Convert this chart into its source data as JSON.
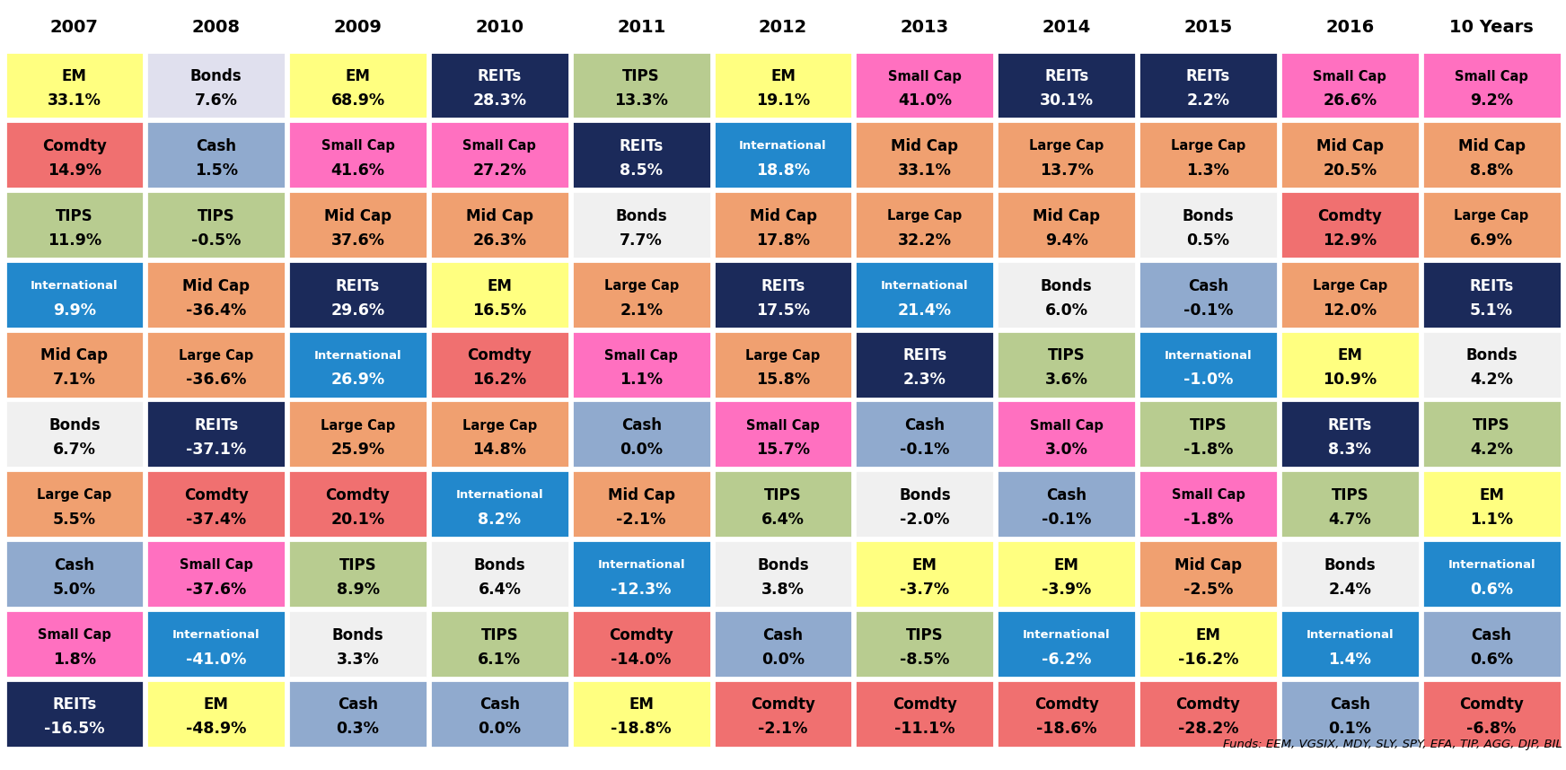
{
  "columns": [
    "2007",
    "2008",
    "2009",
    "2010",
    "2011",
    "2012",
    "2013",
    "2014",
    "2015",
    "2016",
    "10 Years"
  ],
  "rows": [
    [
      {
        "label": "EM",
        "value": "33.1%",
        "bg": "#FFFF80",
        "fg": "#000000"
      },
      {
        "label": "Bonds",
        "value": "7.6%",
        "bg": "#E0E0EE",
        "fg": "#000000"
      },
      {
        "label": "EM",
        "value": "68.9%",
        "bg": "#FFFF80",
        "fg": "#000000"
      },
      {
        "label": "REITs",
        "value": "28.3%",
        "bg": "#1B2A5A",
        "fg": "#FFFFFF"
      },
      {
        "label": "TIPS",
        "value": "13.3%",
        "bg": "#B8CC90",
        "fg": "#000000"
      },
      {
        "label": "EM",
        "value": "19.1%",
        "bg": "#FFFF80",
        "fg": "#000000"
      },
      {
        "label": "Small Cap",
        "value": "41.0%",
        "bg": "#FF70C0",
        "fg": "#000000"
      },
      {
        "label": "REITs",
        "value": "30.1%",
        "bg": "#1B2A5A",
        "fg": "#FFFFFF"
      },
      {
        "label": "REITs",
        "value": "2.2%",
        "bg": "#1B2A5A",
        "fg": "#FFFFFF"
      },
      {
        "label": "Small Cap",
        "value": "26.6%",
        "bg": "#FF70C0",
        "fg": "#000000"
      },
      {
        "label": "Small Cap",
        "value": "9.2%",
        "bg": "#FF70C0",
        "fg": "#000000"
      }
    ],
    [
      {
        "label": "Comdty",
        "value": "14.9%",
        "bg": "#F07070",
        "fg": "#000000"
      },
      {
        "label": "Cash",
        "value": "1.5%",
        "bg": "#90AACE",
        "fg": "#000000"
      },
      {
        "label": "Small Cap",
        "value": "41.6%",
        "bg": "#FF70C0",
        "fg": "#000000"
      },
      {
        "label": "Small Cap",
        "value": "27.2%",
        "bg": "#FF70C0",
        "fg": "#000000"
      },
      {
        "label": "REITs",
        "value": "8.5%",
        "bg": "#1B2A5A",
        "fg": "#FFFFFF"
      },
      {
        "label": "International",
        "value": "18.8%",
        "bg": "#2288CC",
        "fg": "#FFFFFF"
      },
      {
        "label": "Mid Cap",
        "value": "33.1%",
        "bg": "#F0A070",
        "fg": "#000000"
      },
      {
        "label": "Large Cap",
        "value": "13.7%",
        "bg": "#F0A070",
        "fg": "#000000"
      },
      {
        "label": "Large Cap",
        "value": "1.3%",
        "bg": "#F0A070",
        "fg": "#000000"
      },
      {
        "label": "Mid Cap",
        "value": "20.5%",
        "bg": "#F0A070",
        "fg": "#000000"
      },
      {
        "label": "Mid Cap",
        "value": "8.8%",
        "bg": "#F0A070",
        "fg": "#000000"
      }
    ],
    [
      {
        "label": "TIPS",
        "value": "11.9%",
        "bg": "#B8CC90",
        "fg": "#000000"
      },
      {
        "label": "TIPS",
        "value": "-0.5%",
        "bg": "#B8CC90",
        "fg": "#000000"
      },
      {
        "label": "Mid Cap",
        "value": "37.6%",
        "bg": "#F0A070",
        "fg": "#000000"
      },
      {
        "label": "Mid Cap",
        "value": "26.3%",
        "bg": "#F0A070",
        "fg": "#000000"
      },
      {
        "label": "Bonds",
        "value": "7.7%",
        "bg": "#F0F0F0",
        "fg": "#000000"
      },
      {
        "label": "Mid Cap",
        "value": "17.8%",
        "bg": "#F0A070",
        "fg": "#000000"
      },
      {
        "label": "Large Cap",
        "value": "32.2%",
        "bg": "#F0A070",
        "fg": "#000000"
      },
      {
        "label": "Mid Cap",
        "value": "9.4%",
        "bg": "#F0A070",
        "fg": "#000000"
      },
      {
        "label": "Bonds",
        "value": "0.5%",
        "bg": "#F0F0F0",
        "fg": "#000000"
      },
      {
        "label": "Comdty",
        "value": "12.9%",
        "bg": "#F07070",
        "fg": "#000000"
      },
      {
        "label": "Large Cap",
        "value": "6.9%",
        "bg": "#F0A070",
        "fg": "#000000"
      }
    ],
    [
      {
        "label": "International",
        "value": "9.9%",
        "bg": "#2288CC",
        "fg": "#FFFFFF"
      },
      {
        "label": "Mid Cap",
        "value": "-36.4%",
        "bg": "#F0A070",
        "fg": "#000000"
      },
      {
        "label": "REITs",
        "value": "29.6%",
        "bg": "#1B2A5A",
        "fg": "#FFFFFF"
      },
      {
        "label": "EM",
        "value": "16.5%",
        "bg": "#FFFF80",
        "fg": "#000000"
      },
      {
        "label": "Large Cap",
        "value": "2.1%",
        "bg": "#F0A070",
        "fg": "#000000"
      },
      {
        "label": "REITs",
        "value": "17.5%",
        "bg": "#1B2A5A",
        "fg": "#FFFFFF"
      },
      {
        "label": "International",
        "value": "21.4%",
        "bg": "#2288CC",
        "fg": "#FFFFFF"
      },
      {
        "label": "Bonds",
        "value": "6.0%",
        "bg": "#F0F0F0",
        "fg": "#000000"
      },
      {
        "label": "Cash",
        "value": "-0.1%",
        "bg": "#90AACE",
        "fg": "#000000"
      },
      {
        "label": "Large Cap",
        "value": "12.0%",
        "bg": "#F0A070",
        "fg": "#000000"
      },
      {
        "label": "REITs",
        "value": "5.1%",
        "bg": "#1B2A5A",
        "fg": "#FFFFFF"
      }
    ],
    [
      {
        "label": "Mid Cap",
        "value": "7.1%",
        "bg": "#F0A070",
        "fg": "#000000"
      },
      {
        "label": "Large Cap",
        "value": "-36.6%",
        "bg": "#F0A070",
        "fg": "#000000"
      },
      {
        "label": "International",
        "value": "26.9%",
        "bg": "#2288CC",
        "fg": "#FFFFFF"
      },
      {
        "label": "Comdty",
        "value": "16.2%",
        "bg": "#F07070",
        "fg": "#000000"
      },
      {
        "label": "Small Cap",
        "value": "1.1%",
        "bg": "#FF70C0",
        "fg": "#000000"
      },
      {
        "label": "Large Cap",
        "value": "15.8%",
        "bg": "#F0A070",
        "fg": "#000000"
      },
      {
        "label": "REITs",
        "value": "2.3%",
        "bg": "#1B2A5A",
        "fg": "#FFFFFF"
      },
      {
        "label": "TIPS",
        "value": "3.6%",
        "bg": "#B8CC90",
        "fg": "#000000"
      },
      {
        "label": "International",
        "value": "-1.0%",
        "bg": "#2288CC",
        "fg": "#FFFFFF"
      },
      {
        "label": "EM",
        "value": "10.9%",
        "bg": "#FFFF80",
        "fg": "#000000"
      },
      {
        "label": "Bonds",
        "value": "4.2%",
        "bg": "#F0F0F0",
        "fg": "#000000"
      }
    ],
    [
      {
        "label": "Bonds",
        "value": "6.7%",
        "bg": "#F0F0F0",
        "fg": "#000000"
      },
      {
        "label": "REITs",
        "value": "-37.1%",
        "bg": "#1B2A5A",
        "fg": "#FFFFFF"
      },
      {
        "label": "Large Cap",
        "value": "25.9%",
        "bg": "#F0A070",
        "fg": "#000000"
      },
      {
        "label": "Large Cap",
        "value": "14.8%",
        "bg": "#F0A070",
        "fg": "#000000"
      },
      {
        "label": "Cash",
        "value": "0.0%",
        "bg": "#90AACE",
        "fg": "#000000"
      },
      {
        "label": "Small Cap",
        "value": "15.7%",
        "bg": "#FF70C0",
        "fg": "#000000"
      },
      {
        "label": "Cash",
        "value": "-0.1%",
        "bg": "#90AACE",
        "fg": "#000000"
      },
      {
        "label": "Small Cap",
        "value": "3.0%",
        "bg": "#FF70C0",
        "fg": "#000000"
      },
      {
        "label": "TIPS",
        "value": "-1.8%",
        "bg": "#B8CC90",
        "fg": "#000000"
      },
      {
        "label": "REITs",
        "value": "8.3%",
        "bg": "#1B2A5A",
        "fg": "#FFFFFF"
      },
      {
        "label": "TIPS",
        "value": "4.2%",
        "bg": "#B8CC90",
        "fg": "#000000"
      }
    ],
    [
      {
        "label": "Large Cap",
        "value": "5.5%",
        "bg": "#F0A070",
        "fg": "#000000"
      },
      {
        "label": "Comdty",
        "value": "-37.4%",
        "bg": "#F07070",
        "fg": "#000000"
      },
      {
        "label": "Comdty",
        "value": "20.1%",
        "bg": "#F07070",
        "fg": "#000000"
      },
      {
        "label": "International",
        "value": "8.2%",
        "bg": "#2288CC",
        "fg": "#FFFFFF"
      },
      {
        "label": "Mid Cap",
        "value": "-2.1%",
        "bg": "#F0A070",
        "fg": "#000000"
      },
      {
        "label": "TIPS",
        "value": "6.4%",
        "bg": "#B8CC90",
        "fg": "#000000"
      },
      {
        "label": "Bonds",
        "value": "-2.0%",
        "bg": "#F0F0F0",
        "fg": "#000000"
      },
      {
        "label": "Cash",
        "value": "-0.1%",
        "bg": "#90AACE",
        "fg": "#000000"
      },
      {
        "label": "Small Cap",
        "value": "-1.8%",
        "bg": "#FF70C0",
        "fg": "#000000"
      },
      {
        "label": "TIPS",
        "value": "4.7%",
        "bg": "#B8CC90",
        "fg": "#000000"
      },
      {
        "label": "EM",
        "value": "1.1%",
        "bg": "#FFFF80",
        "fg": "#000000"
      }
    ],
    [
      {
        "label": "Cash",
        "value": "5.0%",
        "bg": "#90AACE",
        "fg": "#000000"
      },
      {
        "label": "Small Cap",
        "value": "-37.6%",
        "bg": "#FF70C0",
        "fg": "#000000"
      },
      {
        "label": "TIPS",
        "value": "8.9%",
        "bg": "#B8CC90",
        "fg": "#000000"
      },
      {
        "label": "Bonds",
        "value": "6.4%",
        "bg": "#F0F0F0",
        "fg": "#000000"
      },
      {
        "label": "International",
        "value": "-12.3%",
        "bg": "#2288CC",
        "fg": "#FFFFFF"
      },
      {
        "label": "Bonds",
        "value": "3.8%",
        "bg": "#F0F0F0",
        "fg": "#000000"
      },
      {
        "label": "EM",
        "value": "-3.7%",
        "bg": "#FFFF80",
        "fg": "#000000"
      },
      {
        "label": "EM",
        "value": "-3.9%",
        "bg": "#FFFF80",
        "fg": "#000000"
      },
      {
        "label": "Mid Cap",
        "value": "-2.5%",
        "bg": "#F0A070",
        "fg": "#000000"
      },
      {
        "label": "Bonds",
        "value": "2.4%",
        "bg": "#F0F0F0",
        "fg": "#000000"
      },
      {
        "label": "International",
        "value": "0.6%",
        "bg": "#2288CC",
        "fg": "#FFFFFF"
      }
    ],
    [
      {
        "label": "Small Cap",
        "value": "1.8%",
        "bg": "#FF70C0",
        "fg": "#000000"
      },
      {
        "label": "International",
        "value": "-41.0%",
        "bg": "#2288CC",
        "fg": "#FFFFFF"
      },
      {
        "label": "Bonds",
        "value": "3.3%",
        "bg": "#F0F0F0",
        "fg": "#000000"
      },
      {
        "label": "TIPS",
        "value": "6.1%",
        "bg": "#B8CC90",
        "fg": "#000000"
      },
      {
        "label": "Comdty",
        "value": "-14.0%",
        "bg": "#F07070",
        "fg": "#000000"
      },
      {
        "label": "Cash",
        "value": "0.0%",
        "bg": "#90AACE",
        "fg": "#000000"
      },
      {
        "label": "TIPS",
        "value": "-8.5%",
        "bg": "#B8CC90",
        "fg": "#000000"
      },
      {
        "label": "International",
        "value": "-6.2%",
        "bg": "#2288CC",
        "fg": "#FFFFFF"
      },
      {
        "label": "EM",
        "value": "-16.2%",
        "bg": "#FFFF80",
        "fg": "#000000"
      },
      {
        "label": "International",
        "value": "1.4%",
        "bg": "#2288CC",
        "fg": "#FFFFFF"
      },
      {
        "label": "Cash",
        "value": "0.6%",
        "bg": "#90AACE",
        "fg": "#000000"
      }
    ],
    [
      {
        "label": "REITs",
        "value": "-16.5%",
        "bg": "#1B2A5A",
        "fg": "#FFFFFF"
      },
      {
        "label": "EM",
        "value": "-48.9%",
        "bg": "#FFFF80",
        "fg": "#000000"
      },
      {
        "label": "Cash",
        "value": "0.3%",
        "bg": "#90AACE",
        "fg": "#000000"
      },
      {
        "label": "Cash",
        "value": "0.0%",
        "bg": "#90AACE",
        "fg": "#000000"
      },
      {
        "label": "EM",
        "value": "-18.8%",
        "bg": "#FFFF80",
        "fg": "#000000"
      },
      {
        "label": "Comdty",
        "value": "-2.1%",
        "bg": "#F07070",
        "fg": "#000000"
      },
      {
        "label": "Comdty",
        "value": "-11.1%",
        "bg": "#F07070",
        "fg": "#000000"
      },
      {
        "label": "Comdty",
        "value": "-18.6%",
        "bg": "#F07070",
        "fg": "#000000"
      },
      {
        "label": "Comdty",
        "value": "-28.2%",
        "bg": "#F07070",
        "fg": "#000000"
      },
      {
        "label": "Cash",
        "value": "0.1%",
        "bg": "#90AACE",
        "fg": "#000000"
      },
      {
        "label": "Comdty",
        "value": "-6.8%",
        "bg": "#F07070",
        "fg": "#000000"
      }
    ]
  ],
  "footnote": "Funds: EEM, VGSIX, MDY, SLY, SPY, EFA, TIP, AGG, DJP, BIL"
}
